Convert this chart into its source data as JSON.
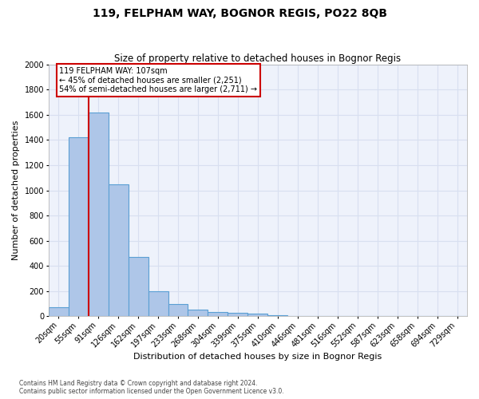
{
  "title": "119, FELPHAM WAY, BOGNOR REGIS, PO22 8QB",
  "subtitle": "Size of property relative to detached houses in Bognor Regis",
  "xlabel": "Distribution of detached houses by size in Bognor Regis",
  "ylabel": "Number of detached properties",
  "footnote": "Contains HM Land Registry data © Crown copyright and database right 2024.\nContains public sector information licensed under the Open Government Licence v3.0.",
  "categories": [
    "20sqm",
    "55sqm",
    "91sqm",
    "126sqm",
    "162sqm",
    "197sqm",
    "233sqm",
    "268sqm",
    "304sqm",
    "339sqm",
    "375sqm",
    "410sqm",
    "446sqm",
    "481sqm",
    "516sqm",
    "552sqm",
    "587sqm",
    "623sqm",
    "658sqm",
    "694sqm",
    "729sqm"
  ],
  "values": [
    75,
    1420,
    1620,
    1050,
    470,
    200,
    100,
    50,
    35,
    30,
    20,
    10,
    0,
    0,
    0,
    0,
    0,
    0,
    0,
    0,
    0
  ],
  "bar_color": "#aec6e8",
  "bar_edge_color": "#5a9fd4",
  "vline_pos": 1.5,
  "vline_color": "#cc0000",
  "annotation_text": "119 FELPHAM WAY: 107sqm\n← 45% of detached houses are smaller (2,251)\n54% of semi-detached houses are larger (2,711) →",
  "annotation_box_edgecolor": "#cc0000",
  "ylim_max": 2000,
  "yticks": [
    0,
    200,
    400,
    600,
    800,
    1000,
    1200,
    1400,
    1600,
    1800,
    2000
  ],
  "bg_color": "#eef2fb",
  "grid_color": "#d8dff0",
  "title_fontsize": 10,
  "subtitle_fontsize": 8.5,
  "axis_label_fontsize": 8,
  "tick_fontsize": 7,
  "footnote_fontsize": 5.5
}
